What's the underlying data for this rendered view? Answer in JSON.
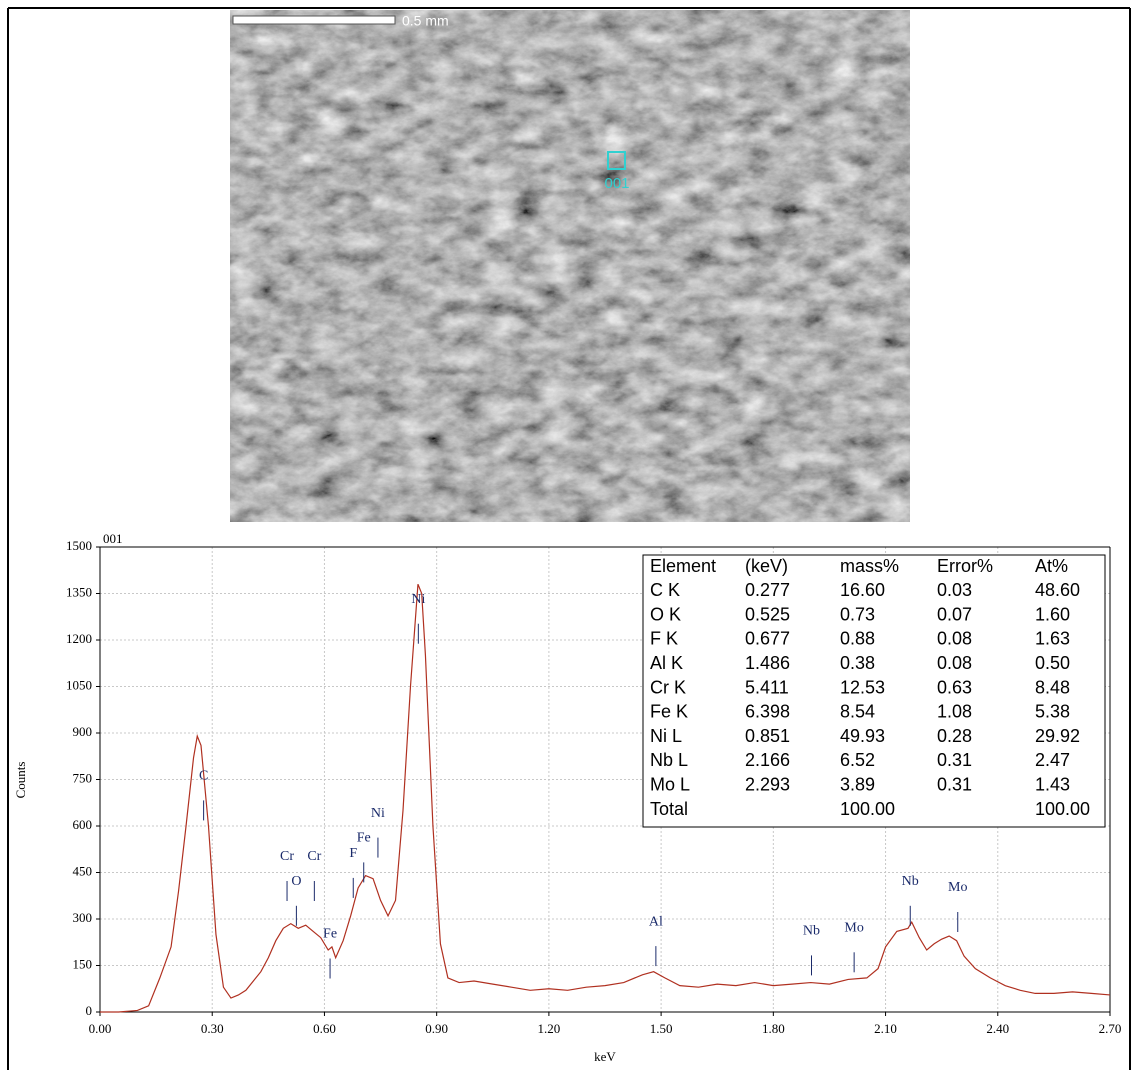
{
  "image": {
    "scale_bar": "0.5 mm",
    "marker": "001"
  },
  "chart_data": {
    "type": "line",
    "title": "001",
    "x_label": "keV",
    "y_label": "Counts",
    "color": "#b03020",
    "grid": true,
    "xlim": [
      0,
      2.7
    ],
    "ylim": [
      0,
      1500
    ],
    "xticks": [
      {
        "value": 0,
        "label": "0.00"
      },
      {
        "value": 0.3,
        "label": "0.30"
      },
      {
        "value": 0.6,
        "label": "0.60"
      },
      {
        "value": 0.9,
        "label": "0.90"
      },
      {
        "value": 1.2,
        "label": "1.20"
      },
      {
        "value": 1.5,
        "label": "1.50"
      },
      {
        "value": 1.8,
        "label": "1.80"
      },
      {
        "value": 2.1,
        "label": "2.10"
      },
      {
        "value": 2.4,
        "label": "2.40"
      },
      {
        "value": 2.7,
        "label": "2.70"
      }
    ],
    "yticks": [
      0,
      150,
      300,
      450,
      600,
      750,
      900,
      1050,
      1200,
      1350,
      1500
    ],
    "x": [
      0,
      0.05,
      0.1,
      0.13,
      0.16,
      0.19,
      0.21,
      0.23,
      0.25,
      0.26,
      0.27,
      0.29,
      0.31,
      0.33,
      0.35,
      0.37,
      0.39,
      0.41,
      0.43,
      0.45,
      0.47,
      0.49,
      0.51,
      0.53,
      0.55,
      0.57,
      0.59,
      0.61,
      0.62,
      0.63,
      0.65,
      0.67,
      0.69,
      0.71,
      0.73,
      0.75,
      0.77,
      0.79,
      0.81,
      0.83,
      0.85,
      0.86,
      0.87,
      0.89,
      0.91,
      0.93,
      0.96,
      1.0,
      1.05,
      1.1,
      1.15,
      1.2,
      1.25,
      1.3,
      1.35,
      1.4,
      1.45,
      1.48,
      1.51,
      1.55,
      1.6,
      1.65,
      1.7,
      1.75,
      1.8,
      1.85,
      1.9,
      1.95,
      2.0,
      2.05,
      2.08,
      2.1,
      2.13,
      2.16,
      2.17,
      2.19,
      2.21,
      2.23,
      2.25,
      2.27,
      2.29,
      2.31,
      2.34,
      2.38,
      2.42,
      2.46,
      2.5,
      2.55,
      2.6,
      2.65,
      2.7
    ],
    "values": [
      0,
      0,
      5,
      20,
      110,
      210,
      390,
      600,
      820,
      890,
      860,
      600,
      250,
      80,
      45,
      55,
      70,
      100,
      130,
      175,
      230,
      270,
      285,
      270,
      280,
      260,
      240,
      200,
      210,
      175,
      230,
      310,
      400,
      440,
      430,
      360,
      310,
      360,
      650,
      1050,
      1380,
      1350,
      1150,
      600,
      220,
      110,
      95,
      100,
      90,
      80,
      70,
      75,
      70,
      80,
      85,
      95,
      120,
      130,
      110,
      85,
      80,
      90,
      85,
      95,
      85,
      90,
      95,
      90,
      105,
      110,
      140,
      210,
      260,
      270,
      290,
      240,
      200,
      220,
      235,
      245,
      230,
      180,
      140,
      110,
      85,
      70,
      60,
      60,
      65,
      60,
      55
    ],
    "annotations": [
      {
        "text": "C",
        "x": 0.277,
        "y": 760
      },
      {
        "text": "O",
        "x": 0.525,
        "y": 420
      },
      {
        "text": "Cr",
        "x": 0.5,
        "y": 500
      },
      {
        "text": "Cr",
        "x": 0.573,
        "y": 500
      },
      {
        "text": "Fe",
        "x": 0.615,
        "y": 250
      },
      {
        "text": "F",
        "x": 0.677,
        "y": 510
      },
      {
        "text": "Fe",
        "x": 0.705,
        "y": 560
      },
      {
        "text": "Ni",
        "x": 0.743,
        "y": 640
      },
      {
        "text": "Ni",
        "x": 0.851,
        "y": 1330
      },
      {
        "text": "Al",
        "x": 1.486,
        "y": 290
      },
      {
        "text": "Nb",
        "x": 1.902,
        "y": 260
      },
      {
        "text": "Mo",
        "x": 2.016,
        "y": 270
      },
      {
        "text": "Nb",
        "x": 2.166,
        "y": 420
      },
      {
        "text": "Mo",
        "x": 2.293,
        "y": 400
      }
    ],
    "table": {
      "columns": [
        "Element",
        "(keV)",
        "mass%",
        "Error%",
        "At%"
      ],
      "rows": [
        [
          "C  K",
          "0.277",
          "16.60",
          "0.03",
          "48.60"
        ],
        [
          "O  K",
          "0.525",
          "0.73",
          "0.07",
          "1.60"
        ],
        [
          "F  K",
          "0.677",
          "0.88",
          "0.08",
          "1.63"
        ],
        [
          "Al K",
          "1.486",
          "0.38",
          "0.08",
          "0.50"
        ],
        [
          "Cr K",
          "5.411",
          "12.53",
          "0.63",
          "8.48"
        ],
        [
          "Fe K",
          "6.398",
          "8.54",
          "1.08",
          "5.38"
        ],
        [
          "Ni L",
          "0.851",
          "49.93",
          "0.28",
          "29.92"
        ],
        [
          "Nb L",
          "2.166",
          "6.52",
          "0.31",
          "2.47"
        ],
        [
          "Mo L",
          "2.293",
          "3.89",
          "0.31",
          "1.43"
        ],
        [
          "Total",
          null,
          "100.00",
          null,
          "100.00"
        ]
      ]
    }
  }
}
